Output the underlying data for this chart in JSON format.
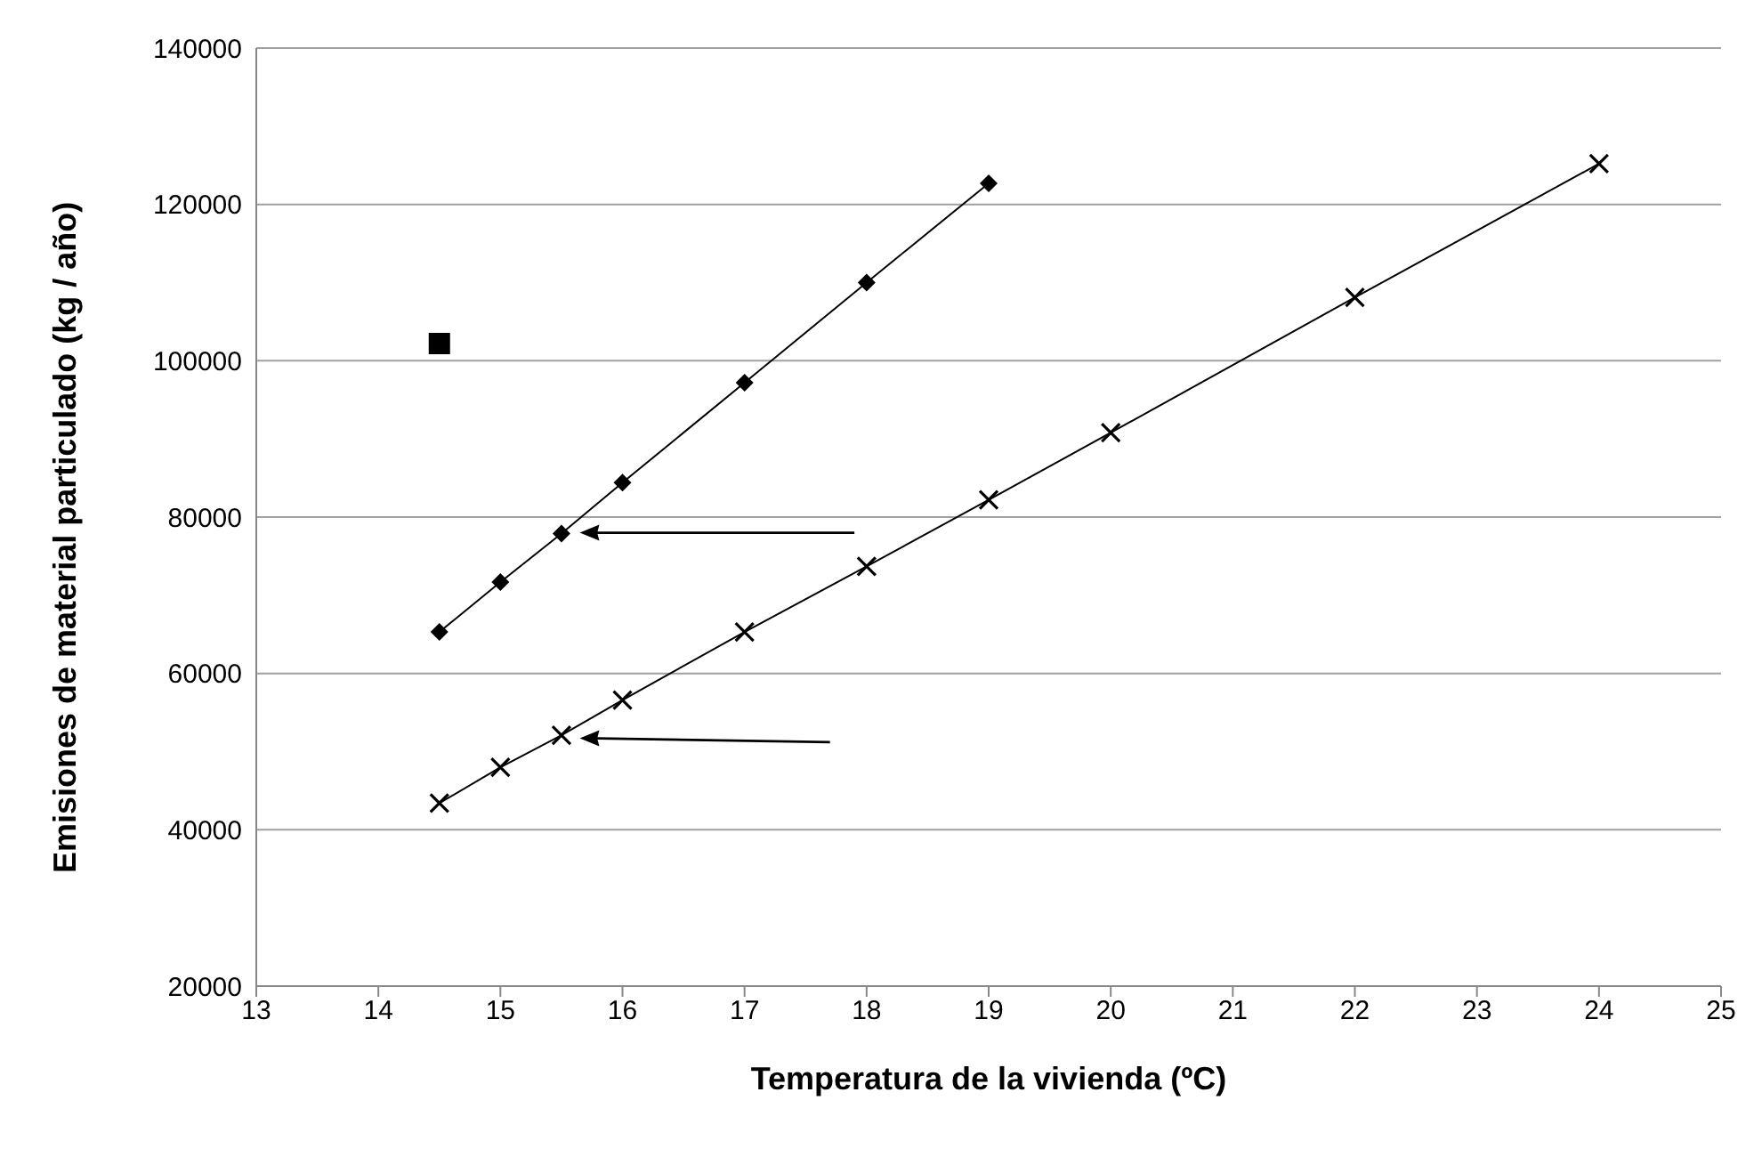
{
  "chart_data": {
    "type": "line",
    "xlabel": "Temperatura de la vivienda (ºC)",
    "ylabel": "Emisiones de material particulado (kg / año)",
    "xlim": [
      13,
      25
    ],
    "xticks": [
      13,
      14,
      15,
      16,
      17,
      18,
      19,
      20,
      21,
      22,
      23,
      24,
      25
    ],
    "ylim": [
      20000,
      140000
    ],
    "yticks": [
      20000,
      40000,
      60000,
      80000,
      100000,
      120000,
      140000
    ],
    "grid": "y",
    "line_style": "solid",
    "series": [
      {
        "marker": "diamond",
        "color": "#000000",
        "x": [
          14.5,
          15,
          15.5,
          16,
          17,
          18,
          19
        ],
        "values": [
          65300,
          71700,
          77900,
          84400,
          97200,
          110000,
          122700
        ]
      },
      {
        "marker": "cross",
        "color": "#000000",
        "x": [
          14.5,
          15,
          15.5,
          16,
          17,
          18,
          19,
          20,
          22,
          24
        ],
        "values": [
          43400,
          48000,
          52100,
          56600,
          65300,
          73700,
          82200,
          90800,
          108100,
          125200
        ]
      },
      {
        "type": "scatter",
        "marker": "square",
        "color": "#000000",
        "x": [
          14.5
        ],
        "values": [
          102200
        ]
      }
    ]
  }
}
